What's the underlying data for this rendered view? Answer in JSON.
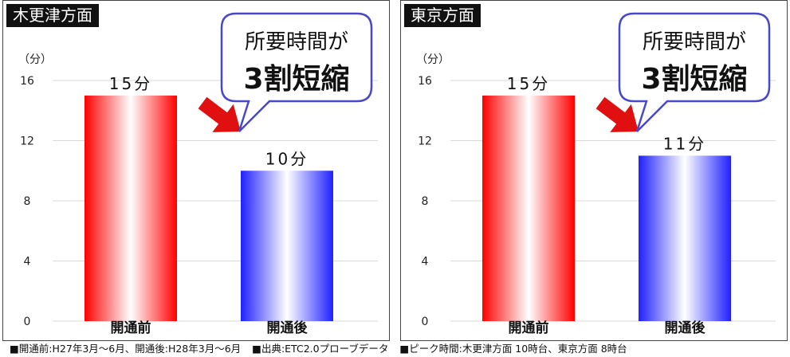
{
  "footnotes": [
    "■開通前:H27年3月〜6月、開通後:H28年3月〜6月",
    "■出典:ETC2.0プローブデータ",
    "■ピーク時間:木更津方面 10時台、東京方面 8時台"
  ],
  "colors": {
    "before_bar": "#ff0000",
    "after_bar": "#2020ff",
    "arrow": "#e01010",
    "callout_border": "#4848c8"
  },
  "chart_data": [
    {
      "type": "bar",
      "title": "木更津方面",
      "ylabel": "（分）",
      "ylim": [
        0,
        16
      ],
      "yticks": [
        0,
        4,
        8,
        12,
        16
      ],
      "categories": [
        "開通前",
        "開通後"
      ],
      "values": [
        15,
        10
      ],
      "value_labels": [
        "15分",
        "10分"
      ],
      "callout": {
        "line1": "所要時間が",
        "line2": "3割短縮"
      },
      "grid": true
    },
    {
      "type": "bar",
      "title": "東京方面",
      "ylabel": "（分）",
      "ylim": [
        0,
        16
      ],
      "yticks": [
        0,
        4,
        8,
        12,
        16
      ],
      "categories": [
        "開通前",
        "開通後"
      ],
      "values": [
        15,
        11
      ],
      "value_labels": [
        "15分",
        "11分"
      ],
      "callout": {
        "line1": "所要時間が",
        "line2": "3割短縮"
      },
      "grid": true
    }
  ]
}
